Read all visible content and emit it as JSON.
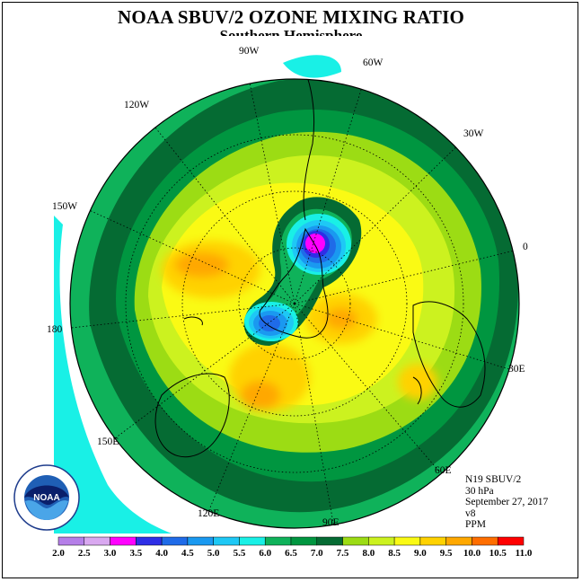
{
  "header": {
    "title": "NOAA SBUV/2 OZONE MIXING RATIO",
    "subtitle": "Southern Hemisphere"
  },
  "map": {
    "projection": "south-polar-stereographic",
    "longitude_labels": [
      "90W",
      "60W",
      "30W",
      "0",
      "30E",
      "60E",
      "90E",
      "120E",
      "150E",
      "180",
      "150W",
      "120W"
    ],
    "field_cells": [
      {
        "lon": -75,
        "lat": -83,
        "v": 3.1
      },
      {
        "lon": -50,
        "lat": -80,
        "v": 4.8
      },
      {
        "lon": -120,
        "lat": -80,
        "v": 4.6
      },
      {
        "lon": 50,
        "lat": -84,
        "v": 4.9
      }
    ],
    "colors": {
      "land_outline": "#000000",
      "graticule": "#000000",
      "background_ocean": "#00ffcc"
    }
  },
  "logo": {
    "text": "NOAA",
    "ring_text": "NATIONAL OCEANIC AND ATMOSPHERIC ADMINISTRATION · U.S. DEPARTMENT OF COMMERCE"
  },
  "info": {
    "satellite": "N19 SBUV/2",
    "level": "30 hPa",
    "date": "September 27, 2017",
    "version": "v8",
    "units": "PPM"
  },
  "colorbar": {
    "ticks": [
      "2.0",
      "2.5",
      "3.0",
      "3.5",
      "4.0",
      "4.5",
      "5.0",
      "5.5",
      "6.0",
      "6.5",
      "7.0",
      "7.5",
      "8.0",
      "8.5",
      "9.0",
      "9.5",
      "10.0",
      "10.5",
      "11.0"
    ],
    "colors": [
      "#b57fe8",
      "#d9a8f0",
      "#ff00ff",
      "#2e2ee6",
      "#1f6be8",
      "#1a99f0",
      "#1ec8f5",
      "#19f0e6",
      "#0fb25a",
      "#009640",
      "#056b33",
      "#9cdc14",
      "#ccf21f",
      "#fafa14",
      "#ffd200",
      "#ffa800",
      "#ff6e00",
      "#ff0000",
      "#8b5a2b"
    ]
  }
}
